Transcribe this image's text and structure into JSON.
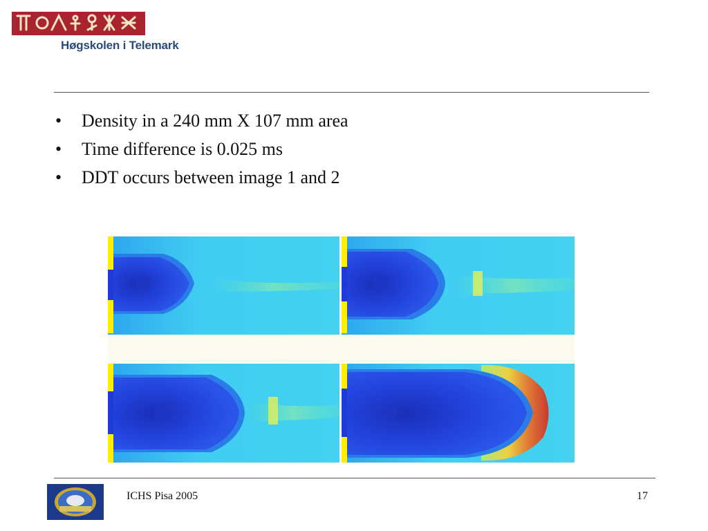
{
  "header": {
    "logo_icon": "glyph-banner-logo",
    "institution_name": "Høgskolen i Telemark"
  },
  "bullets": [
    "Density in a 240 mm X 107 mm area",
    "Time difference is 0.025 ms",
    "DDT occurs between image 1 and 2"
  ],
  "bullet_glyph": "•",
  "figure": {
    "icon": "density-simulation-images",
    "panel_count": 4,
    "colors": {
      "low": "#1e3bd8",
      "mid": "#3ec8f0",
      "high": "#e03a1a",
      "edge": "#ffee00"
    }
  },
  "footer": {
    "logo_icon": "ichs-conference-logo",
    "conference": "ICHS Pisa 2005",
    "page_number": "17"
  }
}
